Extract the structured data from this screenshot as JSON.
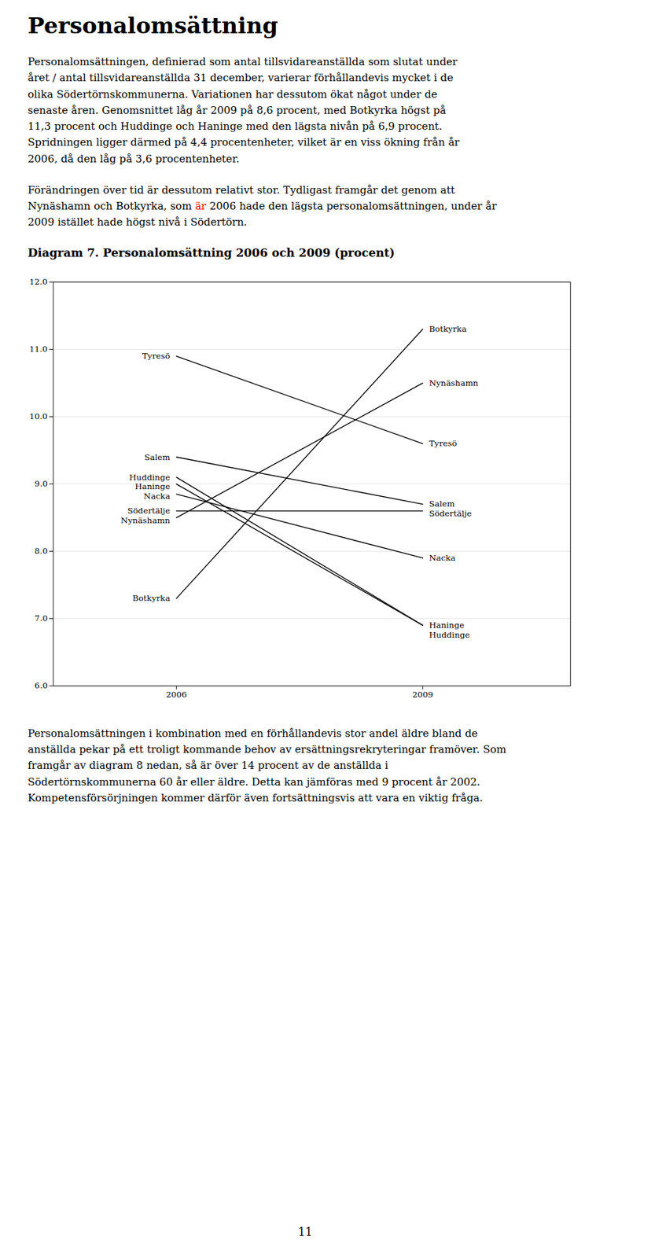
{
  "page_title": "Personalomsättning",
  "intro_text": "Personalomsättningen, definierad som antal tillsvidareanställda som slutat under\nåret / antal tillsvidareanställda 31 december, varierar förhållandevis mycket i de\nolika Södertörnskommunerna. Variationen har dessutom ökat något under de\nsenaste åren. Genomsnittet låg år 2009 på 8,6 procent, med Botkyrka högst på\n11,3 procent och Huddinge och Haninge med den lägsta nivån på 6,9 procent.\nSpridningen ligger därmed på 4,4 procentenheter, vilket är en viss ökning från år\n2006, då den låg på 3,6 procentenheter.",
  "para2_line1": "Förändringen över tid är dessutom relativt stor. Tydligast framgår det genom att",
  "para2_line2": "Nynäshamn och Botkyrka, som ",
  "para2_red": "är",
  "para2_red_color": "red",
  "para2_line3": " 2006 hade den lägsta personalomsättningen, under år",
  "para2_line4": "2009 istället hade högst nivå i Södertörn.",
  "outro_text": "Personalomsättningen i kombination med en förhållandevis stor andel äldre bland de\nanställda pekar på ett troligt kommande behov av ersättningsrekryteringar framöver. Som\nframgår av diagram 8 nedan, så är över 14 procent av de anställda i\nSödertörnskommunerna 60 år eller äldre. Detta kan jämföras med 9 procent år 2002.\nKompetensförsörjningen kommer därför även fortsättningsvis att vara en viktig fråga.",
  "page_number": "11",
  "chart_data": {
    "type": "line",
    "title": "Diagram 7. Personalomsättning 2006 och 2009 (procent)",
    "x": [
      2006,
      2009
    ],
    "series": [
      {
        "name": "Botkyrka",
        "color": "#000000",
        "values": [
          7.3,
          11.3
        ]
      },
      {
        "name": "Haninge",
        "color": "#000000",
        "values": [
          9.0,
          6.9
        ]
      },
      {
        "name": "Huddinge",
        "color": "#000000",
        "values": [
          9.1,
          6.9
        ]
      },
      {
        "name": "Nacka",
        "color": "#000000",
        "values": [
          8.85,
          7.9
        ]
      },
      {
        "name": "Nynäshamn",
        "color": "#000000",
        "values": [
          8.5,
          10.5
        ]
      },
      {
        "name": "Salem",
        "color": "#000000",
        "values": [
          9.4,
          8.7
        ]
      },
      {
        "name": "Södertälje",
        "color": "#000000",
        "values": [
          8.6,
          8.6
        ]
      },
      {
        "name": "Tyresö",
        "color": "#000000",
        "values": [
          10.9,
          9.6
        ]
      }
    ],
    "xlim": [
      2004.5,
      2010.8
    ],
    "xticks": [
      2006,
      2009
    ],
    "ylim": [
      6,
      12
    ],
    "yticks": [
      6,
      7,
      8,
      9,
      10,
      11,
      12
    ],
    "grid": true
  }
}
